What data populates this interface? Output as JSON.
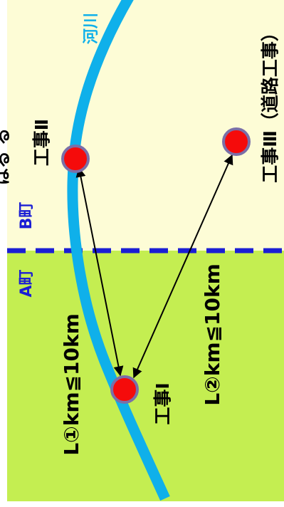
{
  "labels": {
    "river": "河川",
    "construction_1": "工事Ⅰ",
    "construction_2": "工事Ⅱ",
    "construction_3": "工事Ⅲ（道路工事）",
    "town_a": "A町",
    "town_b": "B町",
    "distance_1": "L①km≦10km",
    "distance_2": "L②km≦10km",
    "cut_left": "はる  る"
  },
  "colors": {
    "town_a_fill": "#c4ee51",
    "town_b_fill": "#fdfcd6",
    "river": "#0fb0ea",
    "boundary": "#1b1ed4",
    "site_fill": "#f50b0b",
    "site_stroke": "#7a6fa8",
    "town_label": "#1b1ed4",
    "river_label": "#0fb0ea"
  }
}
